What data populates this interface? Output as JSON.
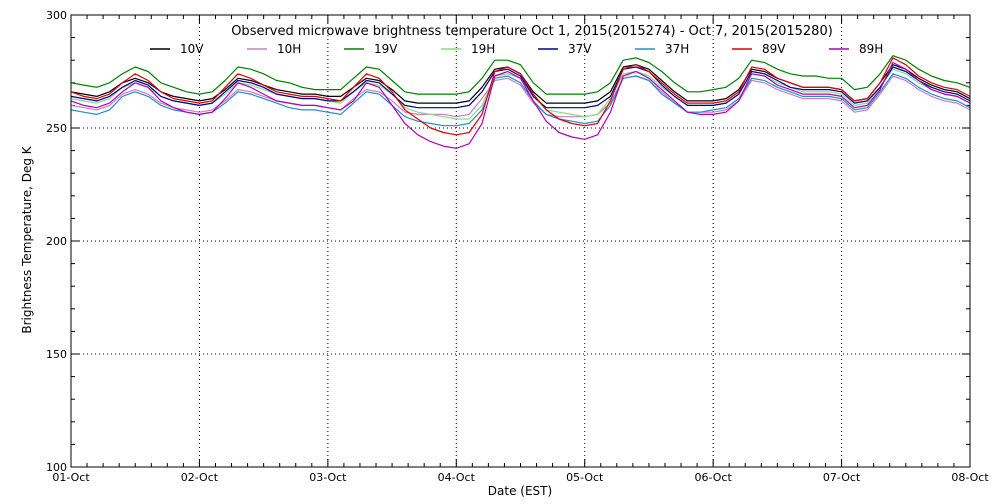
{
  "chart_data": {
    "type": "line",
    "title": "Observed microwave brightness temperature Oct  1, 2015(2015274) - Oct  7, 2015(2015280)",
    "xlabel": "Date (EST)",
    "ylabel": "Brightness Temperature, Deg K",
    "x_ticks": [
      "01-Oct",
      "02-Oct",
      "03-Oct",
      "04-Oct",
      "05-Oct",
      "06-Oct",
      "07-Oct",
      "08-Oct"
    ],
    "y_ticks": [
      100,
      150,
      200,
      250,
      300
    ],
    "xlim": [
      0,
      7
    ],
    "ylim": [
      100,
      300
    ],
    "grid": true,
    "x_unit": "days since 01-Oct",
    "series": [
      {
        "name": "10V",
        "color": "#000000",
        "x": [
          0,
          0.1,
          0.2,
          0.3,
          0.4,
          0.5,
          0.6,
          0.7,
          0.8,
          0.9,
          1.0,
          1.1,
          1.2,
          1.3,
          1.4,
          1.5,
          1.6,
          1.7,
          1.8,
          1.9,
          2.0,
          2.1,
          2.2,
          2.3,
          2.4,
          2.5,
          2.6,
          2.7,
          2.8,
          2.9,
          3.0,
          3.1,
          3.2,
          3.3,
          3.4,
          3.5,
          3.6,
          3.7,
          3.8,
          3.9,
          4.0,
          4.1,
          4.2,
          4.3,
          4.4,
          4.5,
          4.6,
          4.7,
          4.8,
          4.9,
          5.0,
          5.1,
          5.2,
          5.3,
          5.4,
          5.5,
          5.6,
          5.7,
          5.8,
          5.9,
          6.0,
          6.1,
          6.2,
          6.3,
          6.4,
          6.5,
          6.6,
          6.7,
          6.8,
          6.9,
          7.0
        ],
        "values": [
          266,
          265,
          264,
          266,
          270,
          272,
          270,
          266,
          264,
          263,
          262,
          263,
          267,
          272,
          271,
          269,
          267,
          266,
          265,
          265,
          264,
          264,
          268,
          272,
          271,
          267,
          262,
          261,
          261,
          261,
          261,
          262,
          268,
          276,
          277,
          274,
          266,
          261,
          261,
          261,
          261,
          262,
          266,
          277,
          278,
          276,
          271,
          266,
          262,
          262,
          262,
          263,
          267,
          276,
          275,
          272,
          270,
          268,
          268,
          268,
          267,
          262,
          263,
          270,
          278,
          276,
          272,
          269,
          267,
          266,
          263
        ]
      },
      {
        "name": "10H",
        "color": "#d27bc8",
        "x": [
          0,
          0.1,
          0.2,
          0.3,
          0.4,
          0.5,
          0.6,
          0.7,
          0.8,
          0.9,
          1.0,
          1.1,
          1.2,
          1.3,
          1.4,
          1.5,
          1.6,
          1.7,
          1.8,
          1.9,
          2.0,
          2.1,
          2.2,
          2.3,
          2.4,
          2.5,
          2.6,
          2.7,
          2.8,
          2.9,
          3.0,
          3.1,
          3.2,
          3.3,
          3.4,
          3.5,
          3.6,
          3.7,
          3.8,
          3.9,
          4.0,
          4.1,
          4.2,
          4.3,
          4.4,
          4.5,
          4.6,
          4.7,
          4.8,
          4.9,
          5.0,
          5.1,
          5.2,
          5.3,
          5.4,
          5.5,
          5.6,
          5.7,
          5.8,
          5.9,
          6.0,
          6.1,
          6.2,
          6.3,
          6.4,
          6.5,
          6.6,
          6.7,
          6.8,
          6.9,
          7.0
        ],
        "values": [
          260,
          259,
          258,
          260,
          265,
          267,
          265,
          261,
          259,
          258,
          257,
          258,
          262,
          267,
          266,
          264,
          262,
          261,
          260,
          260,
          259,
          258,
          263,
          267,
          266,
          262,
          257,
          256,
          256,
          256,
          255,
          256,
          263,
          271,
          272,
          269,
          261,
          256,
          255,
          255,
          255,
          256,
          261,
          272,
          273,
          271,
          266,
          261,
          257,
          257,
          257,
          258,
          262,
          271,
          270,
          267,
          265,
          263,
          263,
          263,
          262,
          257,
          258,
          265,
          273,
          271,
          267,
          264,
          262,
          261,
          258
        ]
      },
      {
        "name": "19V",
        "color": "#008000",
        "x": [
          0,
          0.1,
          0.2,
          0.3,
          0.4,
          0.5,
          0.6,
          0.7,
          0.8,
          0.9,
          1.0,
          1.1,
          1.2,
          1.3,
          1.4,
          1.5,
          1.6,
          1.7,
          1.8,
          1.9,
          2.0,
          2.1,
          2.2,
          2.3,
          2.4,
          2.5,
          2.6,
          2.7,
          2.8,
          2.9,
          3.0,
          3.1,
          3.2,
          3.3,
          3.4,
          3.5,
          3.6,
          3.7,
          3.8,
          3.9,
          4.0,
          4.1,
          4.2,
          4.3,
          4.4,
          4.5,
          4.6,
          4.7,
          4.8,
          4.9,
          5.0,
          5.1,
          5.2,
          5.3,
          5.4,
          5.5,
          5.6,
          5.7,
          5.8,
          5.9,
          6.0,
          6.1,
          6.2,
          6.3,
          6.4,
          6.5,
          6.6,
          6.7,
          6.8,
          6.9,
          7.0
        ],
        "values": [
          270,
          269,
          268,
          270,
          274,
          277,
          275,
          270,
          268,
          266,
          265,
          266,
          271,
          277,
          276,
          274,
          271,
          270,
          268,
          267,
          267,
          267,
          272,
          277,
          276,
          271,
          266,
          265,
          265,
          265,
          265,
          266,
          272,
          280,
          280,
          278,
          270,
          265,
          265,
          265,
          265,
          266,
          270,
          280,
          281,
          279,
          275,
          270,
          266,
          266,
          267,
          268,
          272,
          280,
          279,
          276,
          274,
          273,
          273,
          272,
          272,
          267,
          268,
          274,
          282,
          280,
          276,
          273,
          271,
          270,
          268
        ]
      },
      {
        "name": "19H",
        "color": "#80e080",
        "x": [
          0,
          0.1,
          0.2,
          0.3,
          0.4,
          0.5,
          0.6,
          0.7,
          0.8,
          0.9,
          1.0,
          1.1,
          1.2,
          1.3,
          1.4,
          1.5,
          1.6,
          1.7,
          1.8,
          1.9,
          2.0,
          2.1,
          2.2,
          2.3,
          2.4,
          2.5,
          2.6,
          2.7,
          2.8,
          2.9,
          3.0,
          3.1,
          3.2,
          3.3,
          3.4,
          3.5,
          3.6,
          3.7,
          3.8,
          3.9,
          4.0,
          4.1,
          4.2,
          4.3,
          4.4,
          4.5,
          4.6,
          4.7,
          4.8,
          4.9,
          5.0,
          5.1,
          5.2,
          5.3,
          5.4,
          5.5,
          5.6,
          5.7,
          5.8,
          5.9,
          6.0,
          6.1,
          6.2,
          6.3,
          6.4,
          6.5,
          6.6,
          6.7,
          6.8,
          6.9,
          7.0
        ],
        "values": [
          263,
          262,
          261,
          263,
          268,
          270,
          268,
          264,
          262,
          261,
          260,
          261,
          265,
          270,
          269,
          267,
          265,
          264,
          263,
          263,
          262,
          261,
          266,
          270,
          269,
          265,
          259,
          257,
          256,
          255,
          254,
          254,
          260,
          273,
          274,
          272,
          264,
          258,
          257,
          256,
          255,
          256,
          263,
          274,
          275,
          273,
          268,
          264,
          260,
          260,
          260,
          261,
          265,
          274,
          273,
          270,
          268,
          266,
          266,
          266,
          265,
          260,
          261,
          268,
          276,
          274,
          270,
          267,
          265,
          264,
          261
        ]
      },
      {
        "name": "37V",
        "color": "#00008b",
        "x": [
          0,
          0.1,
          0.2,
          0.3,
          0.4,
          0.5,
          0.6,
          0.7,
          0.8,
          0.9,
          1.0,
          1.1,
          1.2,
          1.3,
          1.4,
          1.5,
          1.6,
          1.7,
          1.8,
          1.9,
          2.0,
          2.1,
          2.2,
          2.3,
          2.4,
          2.5,
          2.6,
          2.7,
          2.8,
          2.9,
          3.0,
          3.1,
          3.2,
          3.3,
          3.4,
          3.5,
          3.6,
          3.7,
          3.8,
          3.9,
          4.0,
          4.1,
          4.2,
          4.3,
          4.4,
          4.5,
          4.6,
          4.7,
          4.8,
          4.9,
          5.0,
          5.1,
          5.2,
          5.3,
          5.4,
          5.5,
          5.6,
          5.7,
          5.8,
          5.9,
          6.0,
          6.1,
          6.2,
          6.3,
          6.4,
          6.5,
          6.6,
          6.7,
          6.8,
          6.9,
          7.0
        ],
        "values": [
          264,
          263,
          262,
          264,
          268,
          271,
          269,
          264,
          262,
          261,
          260,
          261,
          266,
          271,
          270,
          268,
          265,
          264,
          263,
          263,
          262,
          262,
          266,
          271,
          270,
          265,
          260,
          259,
          259,
          259,
          259,
          260,
          266,
          275,
          276,
          273,
          264,
          259,
          259,
          259,
          259,
          260,
          264,
          276,
          277,
          275,
          269,
          264,
          260,
          260,
          260,
          261,
          265,
          275,
          274,
          271,
          268,
          267,
          267,
          267,
          266,
          261,
          262,
          268,
          277,
          275,
          271,
          268,
          266,
          265,
          262
        ]
      },
      {
        "name": "37H",
        "color": "#1e90c8",
        "x": [
          0,
          0.1,
          0.2,
          0.3,
          0.4,
          0.5,
          0.6,
          0.7,
          0.8,
          0.9,
          1.0,
          1.1,
          1.2,
          1.3,
          1.4,
          1.5,
          1.6,
          1.7,
          1.8,
          1.9,
          2.0,
          2.1,
          2.2,
          2.3,
          2.4,
          2.5,
          2.6,
          2.7,
          2.8,
          2.9,
          3.0,
          3.1,
          3.2,
          3.3,
          3.4,
          3.5,
          3.6,
          3.7,
          3.8,
          3.9,
          4.0,
          4.1,
          4.2,
          4.3,
          4.4,
          4.5,
          4.6,
          4.7,
          4.8,
          4.9,
          5.0,
          5.1,
          5.2,
          5.3,
          5.4,
          5.5,
          5.6,
          5.7,
          5.8,
          5.9,
          6.0,
          6.1,
          6.2,
          6.3,
          6.4,
          6.5,
          6.6,
          6.7,
          6.8,
          6.9,
          7.0
        ],
        "values": [
          258,
          257,
          256,
          258,
          264,
          266,
          264,
          260,
          258,
          257,
          256,
          257,
          261,
          266,
          265,
          263,
          261,
          259,
          258,
          258,
          257,
          256,
          261,
          266,
          265,
          260,
          255,
          253,
          252,
          251,
          251,
          252,
          258,
          272,
          273,
          270,
          262,
          256,
          254,
          253,
          252,
          253,
          260,
          272,
          273,
          271,
          265,
          261,
          257,
          257,
          258,
          259,
          263,
          272,
          271,
          268,
          266,
          264,
          264,
          264,
          263,
          258,
          259,
          266,
          274,
          272,
          268,
          265,
          263,
          262,
          259
        ]
      },
      {
        "name": "89V",
        "color": "#e00000",
        "x": [
          0,
          0.1,
          0.2,
          0.3,
          0.4,
          0.5,
          0.6,
          0.7,
          0.8,
          0.9,
          1.0,
          1.1,
          1.2,
          1.3,
          1.4,
          1.5,
          1.6,
          1.7,
          1.8,
          1.9,
          2.0,
          2.1,
          2.2,
          2.3,
          2.4,
          2.5,
          2.6,
          2.7,
          2.8,
          2.9,
          3.0,
          3.1,
          3.2,
          3.3,
          3.4,
          3.5,
          3.6,
          3.7,
          3.8,
          3.9,
          4.0,
          4.1,
          4.2,
          4.3,
          4.4,
          4.5,
          4.6,
          4.7,
          4.8,
          4.9,
          5.0,
          5.1,
          5.2,
          5.3,
          5.4,
          5.5,
          5.6,
          5.7,
          5.8,
          5.9,
          6.0,
          6.1,
          6.2,
          6.3,
          6.4,
          6.5,
          6.6,
          6.7,
          6.8,
          6.9,
          7.0
        ],
        "values": [
          266,
          264,
          263,
          265,
          270,
          274,
          271,
          266,
          263,
          262,
          261,
          262,
          268,
          274,
          272,
          269,
          266,
          265,
          264,
          264,
          263,
          262,
          268,
          274,
          272,
          266,
          258,
          254,
          250,
          248,
          247,
          248,
          256,
          275,
          277,
          274,
          265,
          258,
          254,
          252,
          251,
          252,
          262,
          276,
          278,
          275,
          270,
          265,
          261,
          261,
          261,
          262,
          266,
          277,
          276,
          272,
          270,
          268,
          268,
          268,
          267,
          262,
          263,
          270,
          281,
          278,
          273,
          270,
          268,
          267,
          264
        ]
      },
      {
        "name": "89H",
        "color": "#b400b4",
        "x": [
          0,
          0.1,
          0.2,
          0.3,
          0.4,
          0.5,
          0.6,
          0.7,
          0.8,
          0.9,
          1.0,
          1.1,
          1.2,
          1.3,
          1.4,
          1.5,
          1.6,
          1.7,
          1.8,
          1.9,
          2.0,
          2.1,
          2.2,
          2.3,
          2.4,
          2.5,
          2.6,
          2.7,
          2.8,
          2.9,
          3.0,
          3.1,
          3.2,
          3.3,
          3.4,
          3.5,
          3.6,
          3.7,
          3.8,
          3.9,
          4.0,
          4.1,
          4.2,
          4.3,
          4.4,
          4.5,
          4.6,
          4.7,
          4.8,
          4.9,
          5.0,
          5.1,
          5.2,
          5.3,
          5.4,
          5.5,
          5.6,
          5.7,
          5.8,
          5.9,
          6.0,
          6.1,
          6.2,
          6.3,
          6.4,
          6.5,
          6.6,
          6.7,
          6.8,
          6.9,
          7.0
        ],
        "values": [
          262,
          260,
          259,
          261,
          266,
          270,
          268,
          262,
          259,
          257,
          256,
          257,
          263,
          270,
          268,
          265,
          262,
          261,
          260,
          260,
          259,
          258,
          262,
          270,
          268,
          260,
          252,
          247,
          244,
          242,
          241,
          243,
          252,
          273,
          275,
          272,
          262,
          253,
          248,
          246,
          245,
          247,
          257,
          273,
          275,
          272,
          267,
          262,
          257,
          256,
          256,
          257,
          262,
          274,
          273,
          269,
          267,
          265,
          265,
          265,
          264,
          259,
          260,
          267,
          279,
          276,
          271,
          267,
          265,
          264,
          261
        ]
      }
    ]
  }
}
